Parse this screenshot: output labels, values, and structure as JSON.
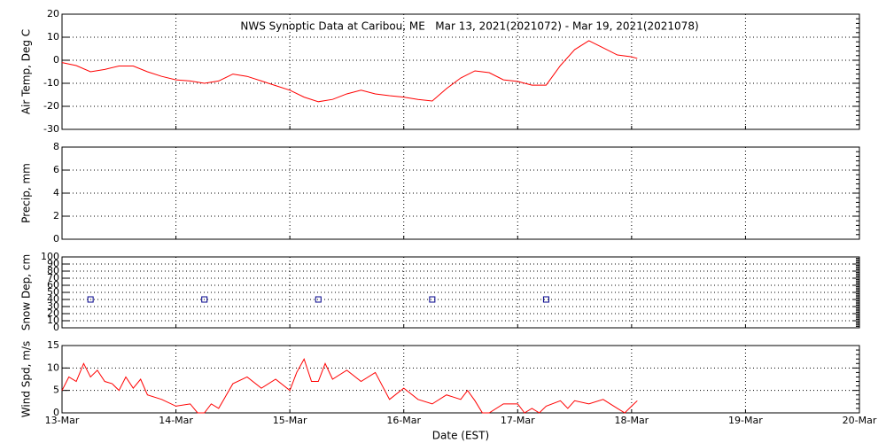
{
  "title": "NWS Synoptic Data at Caribou, ME   Mar 13, 2021(2021072) - Mar 19, 2021(2021078)",
  "chart_data": [
    {
      "type": "line",
      "ylabel": "Air Temp, Deg C",
      "color": "#ff0000",
      "xlim": [
        13,
        20
      ],
      "ylim": [
        -30,
        20
      ],
      "yticks": [
        -30,
        -20,
        -10,
        0,
        10,
        20
      ],
      "grid": true,
      "x": [
        13.0,
        13.125,
        13.25,
        13.375,
        13.5,
        13.625,
        13.75,
        13.875,
        14.0,
        14.125,
        14.25,
        14.375,
        14.5,
        14.625,
        14.75,
        14.875,
        15.0,
        15.125,
        15.25,
        15.375,
        15.5,
        15.625,
        15.75,
        15.875,
        16.0,
        16.125,
        16.25,
        16.375,
        16.5,
        16.625,
        16.75,
        16.875,
        17.0,
        17.125,
        17.25,
        17.375,
        17.5,
        17.625,
        17.75,
        17.875,
        18.0,
        18.05
      ],
      "values": [
        -1,
        -2.3,
        -5,
        -4,
        -2.5,
        -2.5,
        -5,
        -7,
        -8.5,
        -9,
        -10,
        -9,
        -6,
        -7,
        -9,
        -11,
        -13,
        -16,
        -18,
        -17,
        -14.6,
        -13,
        -14.6,
        -15.4,
        -16,
        -17,
        -17.7,
        -12.3,
        -7.7,
        -4.6,
        -5.4,
        -8.5,
        -9.2,
        -10.8,
        -10.8,
        -2.3,
        4.6,
        8.5,
        5.4,
        2.3,
        1.5,
        0.8
      ]
    },
    {
      "type": "line",
      "ylabel": "Precip, mm",
      "color": "#ff0000",
      "xlim": [
        13,
        20
      ],
      "ylim": [
        0,
        8
      ],
      "yticks": [
        0,
        2,
        4,
        6,
        8
      ],
      "grid": true,
      "x": [],
      "values": []
    },
    {
      "type": "scatter",
      "ylabel": "Snow Dep, cm",
      "color": "#00008b",
      "xlim": [
        13,
        20
      ],
      "ylim": [
        0,
        100
      ],
      "yticks": [
        0,
        10,
        20,
        30,
        40,
        50,
        60,
        70,
        80,
        90,
        100
      ],
      "grid": true,
      "x": [
        13.25,
        14.25,
        15.25,
        16.25,
        17.25
      ],
      "values": [
        40,
        40,
        40,
        40,
        40
      ]
    },
    {
      "type": "line",
      "ylabel": "Wind Spd, m/s",
      "xlabel": "Date (EST)",
      "color": "#ff0000",
      "xlim": [
        13,
        20
      ],
      "ylim": [
        0,
        15
      ],
      "yticks": [
        0,
        5,
        10,
        15
      ],
      "grid": true,
      "xticks": [
        {
          "value": 13,
          "label": "13-Mar"
        },
        {
          "value": 14,
          "label": "14-Mar"
        },
        {
          "value": 15,
          "label": "15-Mar"
        },
        {
          "value": 16,
          "label": "16-Mar"
        },
        {
          "value": 17,
          "label": "17-Mar"
        },
        {
          "value": 18,
          "label": "18-Mar"
        },
        {
          "value": 19,
          "label": "19-Mar"
        },
        {
          "value": 20,
          "label": "20-Mar"
        }
      ],
      "x": [
        13.0,
        13.06,
        13.125,
        13.19,
        13.25,
        13.31,
        13.375,
        13.44,
        13.5,
        13.56,
        13.625,
        13.69,
        13.75,
        13.875,
        14.0,
        14.125,
        14.19,
        14.25,
        14.31,
        14.375,
        14.5,
        14.625,
        14.75,
        14.875,
        15.0,
        15.06,
        15.125,
        15.19,
        15.25,
        15.31,
        15.375,
        15.5,
        15.625,
        15.75,
        15.875,
        16.0,
        16.125,
        16.25,
        16.375,
        16.5,
        16.56,
        16.625,
        16.69,
        16.75,
        16.875,
        17.0,
        17.06,
        17.125,
        17.19,
        17.25,
        17.375,
        17.44,
        17.5,
        17.625,
        17.75,
        17.875,
        17.94,
        18.0,
        18.05
      ],
      "values": [
        5,
        8,
        7,
        11,
        8,
        9.5,
        7,
        6.5,
        5,
        8,
        5.5,
        7.5,
        4,
        3,
        1.5,
        2,
        0,
        0,
        2,
        1,
        6.5,
        8,
        5.5,
        7.5,
        5,
        9,
        12,
        7,
        7,
        11,
        7.5,
        9.5,
        7,
        9,
        3,
        5.5,
        3,
        2,
        4,
        3,
        5,
        2.7,
        0,
        0,
        2,
        2,
        0,
        1,
        0,
        1.5,
        2.7,
        1,
        2.7,
        2,
        3,
        1,
        0,
        1.5,
        2.7
      ]
    }
  ]
}
